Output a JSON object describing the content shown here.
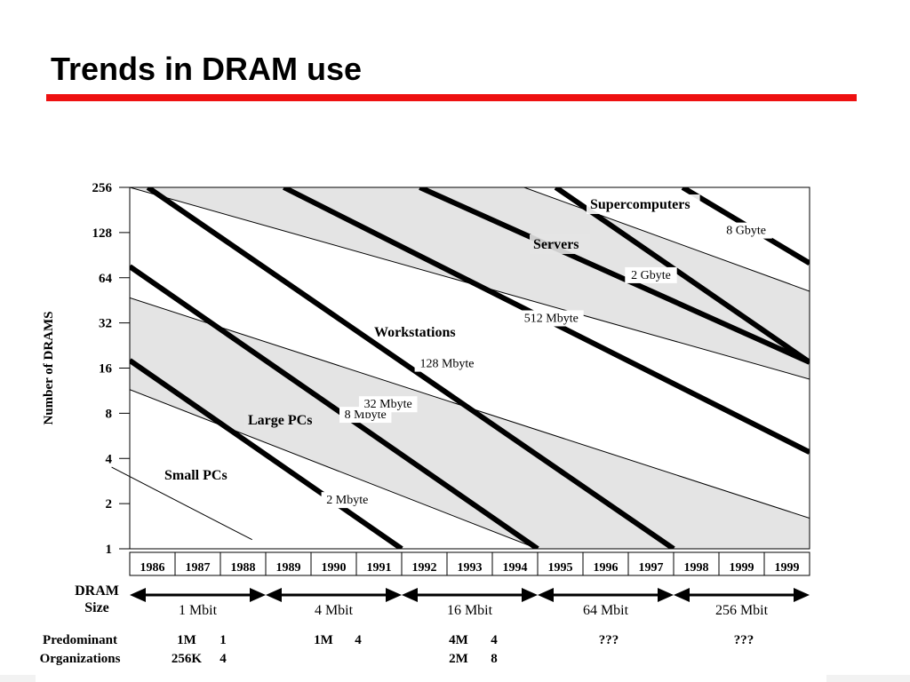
{
  "slide": {
    "title": "Trends in DRAM use",
    "accent_color": "#ee1111"
  },
  "chart_data": {
    "type": "line",
    "title": "",
    "ylabel": "Number of DRAMS",
    "y_scale": "log2",
    "ylim": [
      1,
      256
    ],
    "y_ticks": [
      "256",
      "128",
      "64",
      "32",
      "16",
      "8",
      "4",
      "2",
      "1"
    ],
    "x_ticks": [
      "1986",
      "1987",
      "1988",
      "1989",
      "1990",
      "1991",
      "1992",
      "1993",
      "1994",
      "1995",
      "1996",
      "1997",
      "1998",
      "1999",
      "1999"
    ],
    "memory_size_series": [
      {
        "name": "2 Mbyte",
        "points": [
          [
            1986,
            18
          ],
          [
            1992,
            1
          ]
        ]
      },
      {
        "name": "8 Mbyte",
        "points": [
          [
            1986,
            76
          ],
          [
            1995,
            1
          ]
        ]
      },
      {
        "name": "32 Mbyte",
        "points": [
          [
            1986.4,
            256
          ],
          [
            1998,
            1
          ]
        ]
      },
      {
        "name": "128 Mbyte",
        "points": [
          [
            1989.4,
            256
          ],
          [
            2001,
            4.4
          ]
        ]
      },
      {
        "name": "512 Mbyte",
        "points": [
          [
            1992.4,
            256
          ],
          [
            2001,
            17.5
          ]
        ]
      },
      {
        "name": "2 Gbyte",
        "points": [
          [
            1995.4,
            256
          ],
          [
            2001,
            17.5
          ]
        ]
      },
      {
        "name": "8 Gbyte",
        "points": [
          [
            1998.2,
            256
          ],
          [
            2001,
            80
          ]
        ]
      }
    ],
    "segment_boundaries": [
      {
        "points": [
          [
            1985.6,
            3.5
          ],
          [
            1988.7,
            1.15
          ]
        ]
      },
      {
        "points": [
          [
            1986,
            11.5
          ],
          [
            1995,
            1
          ]
        ]
      },
      {
        "points": [
          [
            1986,
            47
          ],
          [
            2001,
            1.6
          ]
        ]
      },
      {
        "points": [
          [
            1986,
            256
          ],
          [
            2001,
            13.5
          ]
        ]
      },
      {
        "points": [
          [
            1994.7,
            256
          ],
          [
            2001,
            52
          ]
        ]
      }
    ],
    "shading_color": "#e4e4e4",
    "segments": [
      "Small PCs",
      "Large PCs",
      "Workstations",
      "Servers",
      "Supercomputers"
    ],
    "dram_size_label": "DRAM Size",
    "dram_generations": [
      {
        "size": "1 Mbit",
        "from": "1986",
        "to": "1988",
        "organizations": [
          [
            "1M",
            "1"
          ],
          [
            "256K",
            "4"
          ]
        ]
      },
      {
        "size": "4 Mbit",
        "from": "1989",
        "to": "1991",
        "organizations": [
          [
            "1M",
            "4"
          ]
        ]
      },
      {
        "size": "16 Mbit",
        "from": "1992",
        "to": "1994",
        "organizations": [
          [
            "4M",
            "4"
          ],
          [
            "2M",
            "8"
          ]
        ]
      },
      {
        "size": "64 Mbit",
        "from": "1995",
        "to": "1997",
        "organizations": [
          [
            "???",
            ""
          ]
        ]
      },
      {
        "size": "256 Mbit",
        "from": "1998",
        "to": "1999",
        "organizations": [
          [
            "???",
            ""
          ]
        ]
      }
    ],
    "organizations_label": [
      "Predominant",
      "Organizations"
    ],
    "grid": false
  }
}
